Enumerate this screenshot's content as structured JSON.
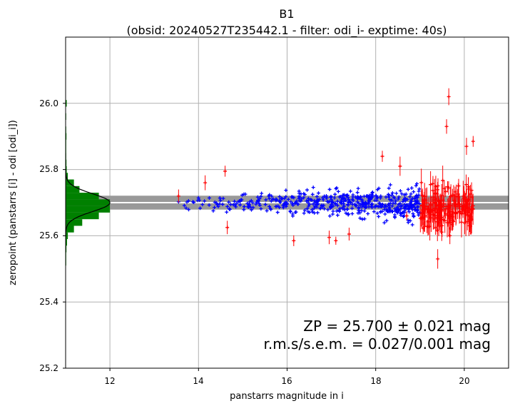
{
  "chart_data": {
    "type": "scatter",
    "title": "B1",
    "subtitle": "(obsid: 20240527T235442.1 - filter: odi_i- exptime: 40s)",
    "xlabel": "panstarrs magnitude in i",
    "ylabel": "zeropoint (panstarrs [i] - odi [odi_i])",
    "xlim": [
      11.0,
      21.0
    ],
    "ylim": [
      25.2,
      26.2
    ],
    "xticks": [
      "12",
      "14",
      "16",
      "18",
      "20"
    ],
    "yticks": [
      "25.2",
      "25.4",
      "25.6",
      "25.8",
      "26.0"
    ],
    "grid": true,
    "zp_value": 25.7,
    "zp_sigma": 0.021,
    "annotation_line1": "ZP = 25.700 ± 0.021 mag",
    "annotation_line2": "r.m.s/s.e.m. = 0.027/0.001 mag",
    "colors": {
      "used": "#0000ff",
      "rejected": "#ff0000",
      "histogram": "#008000",
      "band": "#999999",
      "fit_line": "#ffffff",
      "gaussian": "#000000"
    },
    "series": [
      {
        "marker": "+",
        "color": "#0000ff",
        "x_range": [
          13.5,
          19.0
        ],
        "y_center": 25.698,
        "y_scatter": 0.03,
        "count": 520
      },
      {
        "marker": "+",
        "color": "#ff0000",
        "x_range": [
          19.0,
          20.2
        ],
        "y_center": 25.68,
        "y_scatter": 0.05,
        "count": 200,
        "errorbars": true
      },
      {
        "marker": "+",
        "color": "#ff0000",
        "points": [
          [
            13.55,
            25.72
          ],
          [
            14.15,
            25.76
          ],
          [
            14.6,
            25.795
          ],
          [
            14.65,
            25.625
          ],
          [
            16.15,
            25.585
          ],
          [
            16.95,
            25.595
          ],
          [
            17.1,
            25.585
          ],
          [
            17.4,
            25.605
          ],
          [
            18.15,
            25.84
          ],
          [
            18.55,
            25.81
          ],
          [
            18.7,
            25.66
          ],
          [
            19.4,
            25.53
          ],
          [
            19.6,
            25.93
          ],
          [
            19.65,
            26.02
          ],
          [
            20.05,
            25.87
          ],
          [
            20.2,
            25.885
          ]
        ]
      }
    ],
    "histogram": {
      "bin_edges": [
        25.51,
        25.53,
        25.55,
        25.57,
        25.59,
        25.61,
        25.63,
        25.65,
        25.67,
        25.69,
        25.71,
        25.73,
        25.75,
        25.77,
        25.79,
        25.81,
        25.83,
        25.85,
        25.87,
        25.89,
        25.91,
        25.93,
        25.95,
        25.97,
        25.99,
        26.01
      ],
      "counts": [
        0.1,
        0.2,
        0.3,
        0.5,
        0.8,
        3.0,
        6.0,
        12.0,
        16.0,
        16.0,
        12.0,
        5.0,
        3.0,
        0.8,
        0.4,
        0.3,
        0.1,
        0.2,
        0.1,
        0.3,
        0.2,
        0.0,
        0.1,
        0.0,
        0.4
      ],
      "max_count": 16.0,
      "display_xmax": 12.0
    }
  }
}
